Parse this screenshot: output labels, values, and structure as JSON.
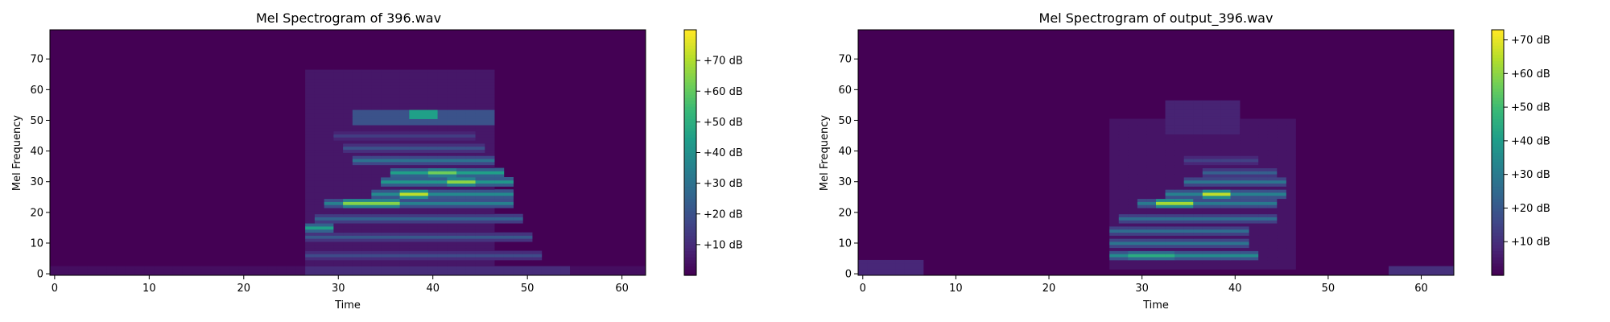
{
  "chart_data": [
    {
      "type": "heatmap",
      "title": "Mel Spectrogram of 396.wav",
      "xlabel": "Time",
      "ylabel": "Mel Frequency",
      "xlim": [
        -0.5,
        62.5
      ],
      "ylim": [
        -0.5,
        79.5
      ],
      "x_ticks": [
        0,
        10,
        20,
        30,
        40,
        50,
        60
      ],
      "y_ticks": [
        0,
        10,
        20,
        30,
        40,
        50,
        60,
        70
      ],
      "colormap": "viridis",
      "colorbar_ticks": [
        "+10 dB",
        "+20 dB",
        "+30 dB",
        "+40 dB",
        "+50 dB",
        "+60 dB",
        "+70 dB"
      ],
      "colorbar_range_db": [
        0,
        80
      ],
      "n_frames": 63,
      "n_mels": 80,
      "regions": [
        {
          "t": [
            27,
            54
          ],
          "mel": [
            0,
            2
          ],
          "db": 10
        },
        {
          "t": [
            0,
            62
          ],
          "mel": [
            0,
            2
          ],
          "db": 3
        },
        {
          "t": [
            27,
            46
          ],
          "mel": [
            2,
            66
          ],
          "db": 5
        },
        {
          "t": [
            32,
            46
          ],
          "mel": [
            49,
            53
          ],
          "db": 20
        },
        {
          "t": [
            38,
            40
          ],
          "mel": [
            51,
            53
          ],
          "db": 45
        }
      ],
      "harmonics": [
        {
          "mel": 6,
          "t": [
            27,
            51
          ],
          "db": 18
        },
        {
          "mel": 12,
          "t": [
            27,
            50
          ],
          "db": 22
        },
        {
          "mel": 15,
          "t": [
            27,
            29
          ],
          "db": 45
        },
        {
          "mel": 18,
          "t": [
            28,
            49
          ],
          "db": 25
        },
        {
          "mel": 23,
          "t": [
            29,
            48
          ],
          "db": 35
        },
        {
          "mel": 23,
          "t": [
            31,
            36
          ],
          "db": 65
        },
        {
          "mel": 26,
          "t": [
            34,
            48
          ],
          "db": 38
        },
        {
          "mel": 26,
          "t": [
            37,
            39
          ],
          "db": 72
        },
        {
          "mel": 30,
          "t": [
            35,
            48
          ],
          "db": 42
        },
        {
          "mel": 30,
          "t": [
            42,
            44
          ],
          "db": 66
        },
        {
          "mel": 33,
          "t": [
            36,
            47
          ],
          "db": 45
        },
        {
          "mel": 33,
          "t": [
            40,
            42
          ],
          "db": 62
        },
        {
          "mel": 37,
          "t": [
            32,
            46
          ],
          "db": 30
        },
        {
          "mel": 41,
          "t": [
            31,
            45
          ],
          "db": 20
        },
        {
          "mel": 45,
          "t": [
            30,
            44
          ],
          "db": 14
        }
      ]
    },
    {
      "type": "heatmap",
      "title": "Mel Spectrogram of output_396.wav",
      "xlabel": "Time",
      "ylabel": "Mel Frequency",
      "xlim": [
        -0.5,
        63.5
      ],
      "ylim": [
        -0.5,
        79.5
      ],
      "x_ticks": [
        0,
        10,
        20,
        30,
        40,
        50,
        60
      ],
      "y_ticks": [
        0,
        10,
        20,
        30,
        40,
        50,
        60,
        70
      ],
      "colormap": "viridis",
      "colorbar_ticks": [
        "+10 dB",
        "+20 dB",
        "+30 dB",
        "+40 dB",
        "+50 dB",
        "+60 dB",
        "+70 dB"
      ],
      "colorbar_range_db": [
        0,
        73
      ],
      "n_frames": 64,
      "n_mels": 80,
      "regions": [
        {
          "t": [
            0,
            6
          ],
          "mel": [
            0,
            4
          ],
          "db": 8
        },
        {
          "t": [
            57,
            63
          ],
          "mel": [
            0,
            2
          ],
          "db": 10
        },
        {
          "t": [
            27,
            46
          ],
          "mel": [
            2,
            50
          ],
          "db": 4
        },
        {
          "t": [
            33,
            40
          ],
          "mel": [
            46,
            56
          ],
          "db": 7
        }
      ],
      "harmonics": [
        {
          "mel": 6,
          "t": [
            27,
            42
          ],
          "db": 35
        },
        {
          "mel": 6,
          "t": [
            29,
            33
          ],
          "db": 45
        },
        {
          "mel": 10,
          "t": [
            27,
            41
          ],
          "db": 28
        },
        {
          "mel": 14,
          "t": [
            27,
            41
          ],
          "db": 26
        },
        {
          "mel": 18,
          "t": [
            28,
            44
          ],
          "db": 26
        },
        {
          "mel": 23,
          "t": [
            30,
            44
          ],
          "db": 30
        },
        {
          "mel": 23,
          "t": [
            32,
            35
          ],
          "db": 63
        },
        {
          "mel": 26,
          "t": [
            33,
            45
          ],
          "db": 32
        },
        {
          "mel": 26,
          "t": [
            37,
            39
          ],
          "db": 66
        },
        {
          "mel": 30,
          "t": [
            35,
            45
          ],
          "db": 28
        },
        {
          "mel": 33,
          "t": [
            37,
            44
          ],
          "db": 22
        },
        {
          "mel": 37,
          "t": [
            35,
            42
          ],
          "db": 14
        }
      ]
    }
  ]
}
